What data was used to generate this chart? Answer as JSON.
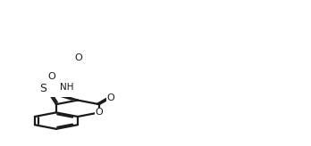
{
  "bg_color": "#ffffff",
  "line_color": "#1a1a1a",
  "line_width": 1.5,
  "font_size": 9,
  "atoms": {
    "S": "S",
    "O_ring": "O",
    "O_carbonyl1": "O",
    "O_carbonyl2": "O",
    "N": "N",
    "H": "H"
  }
}
